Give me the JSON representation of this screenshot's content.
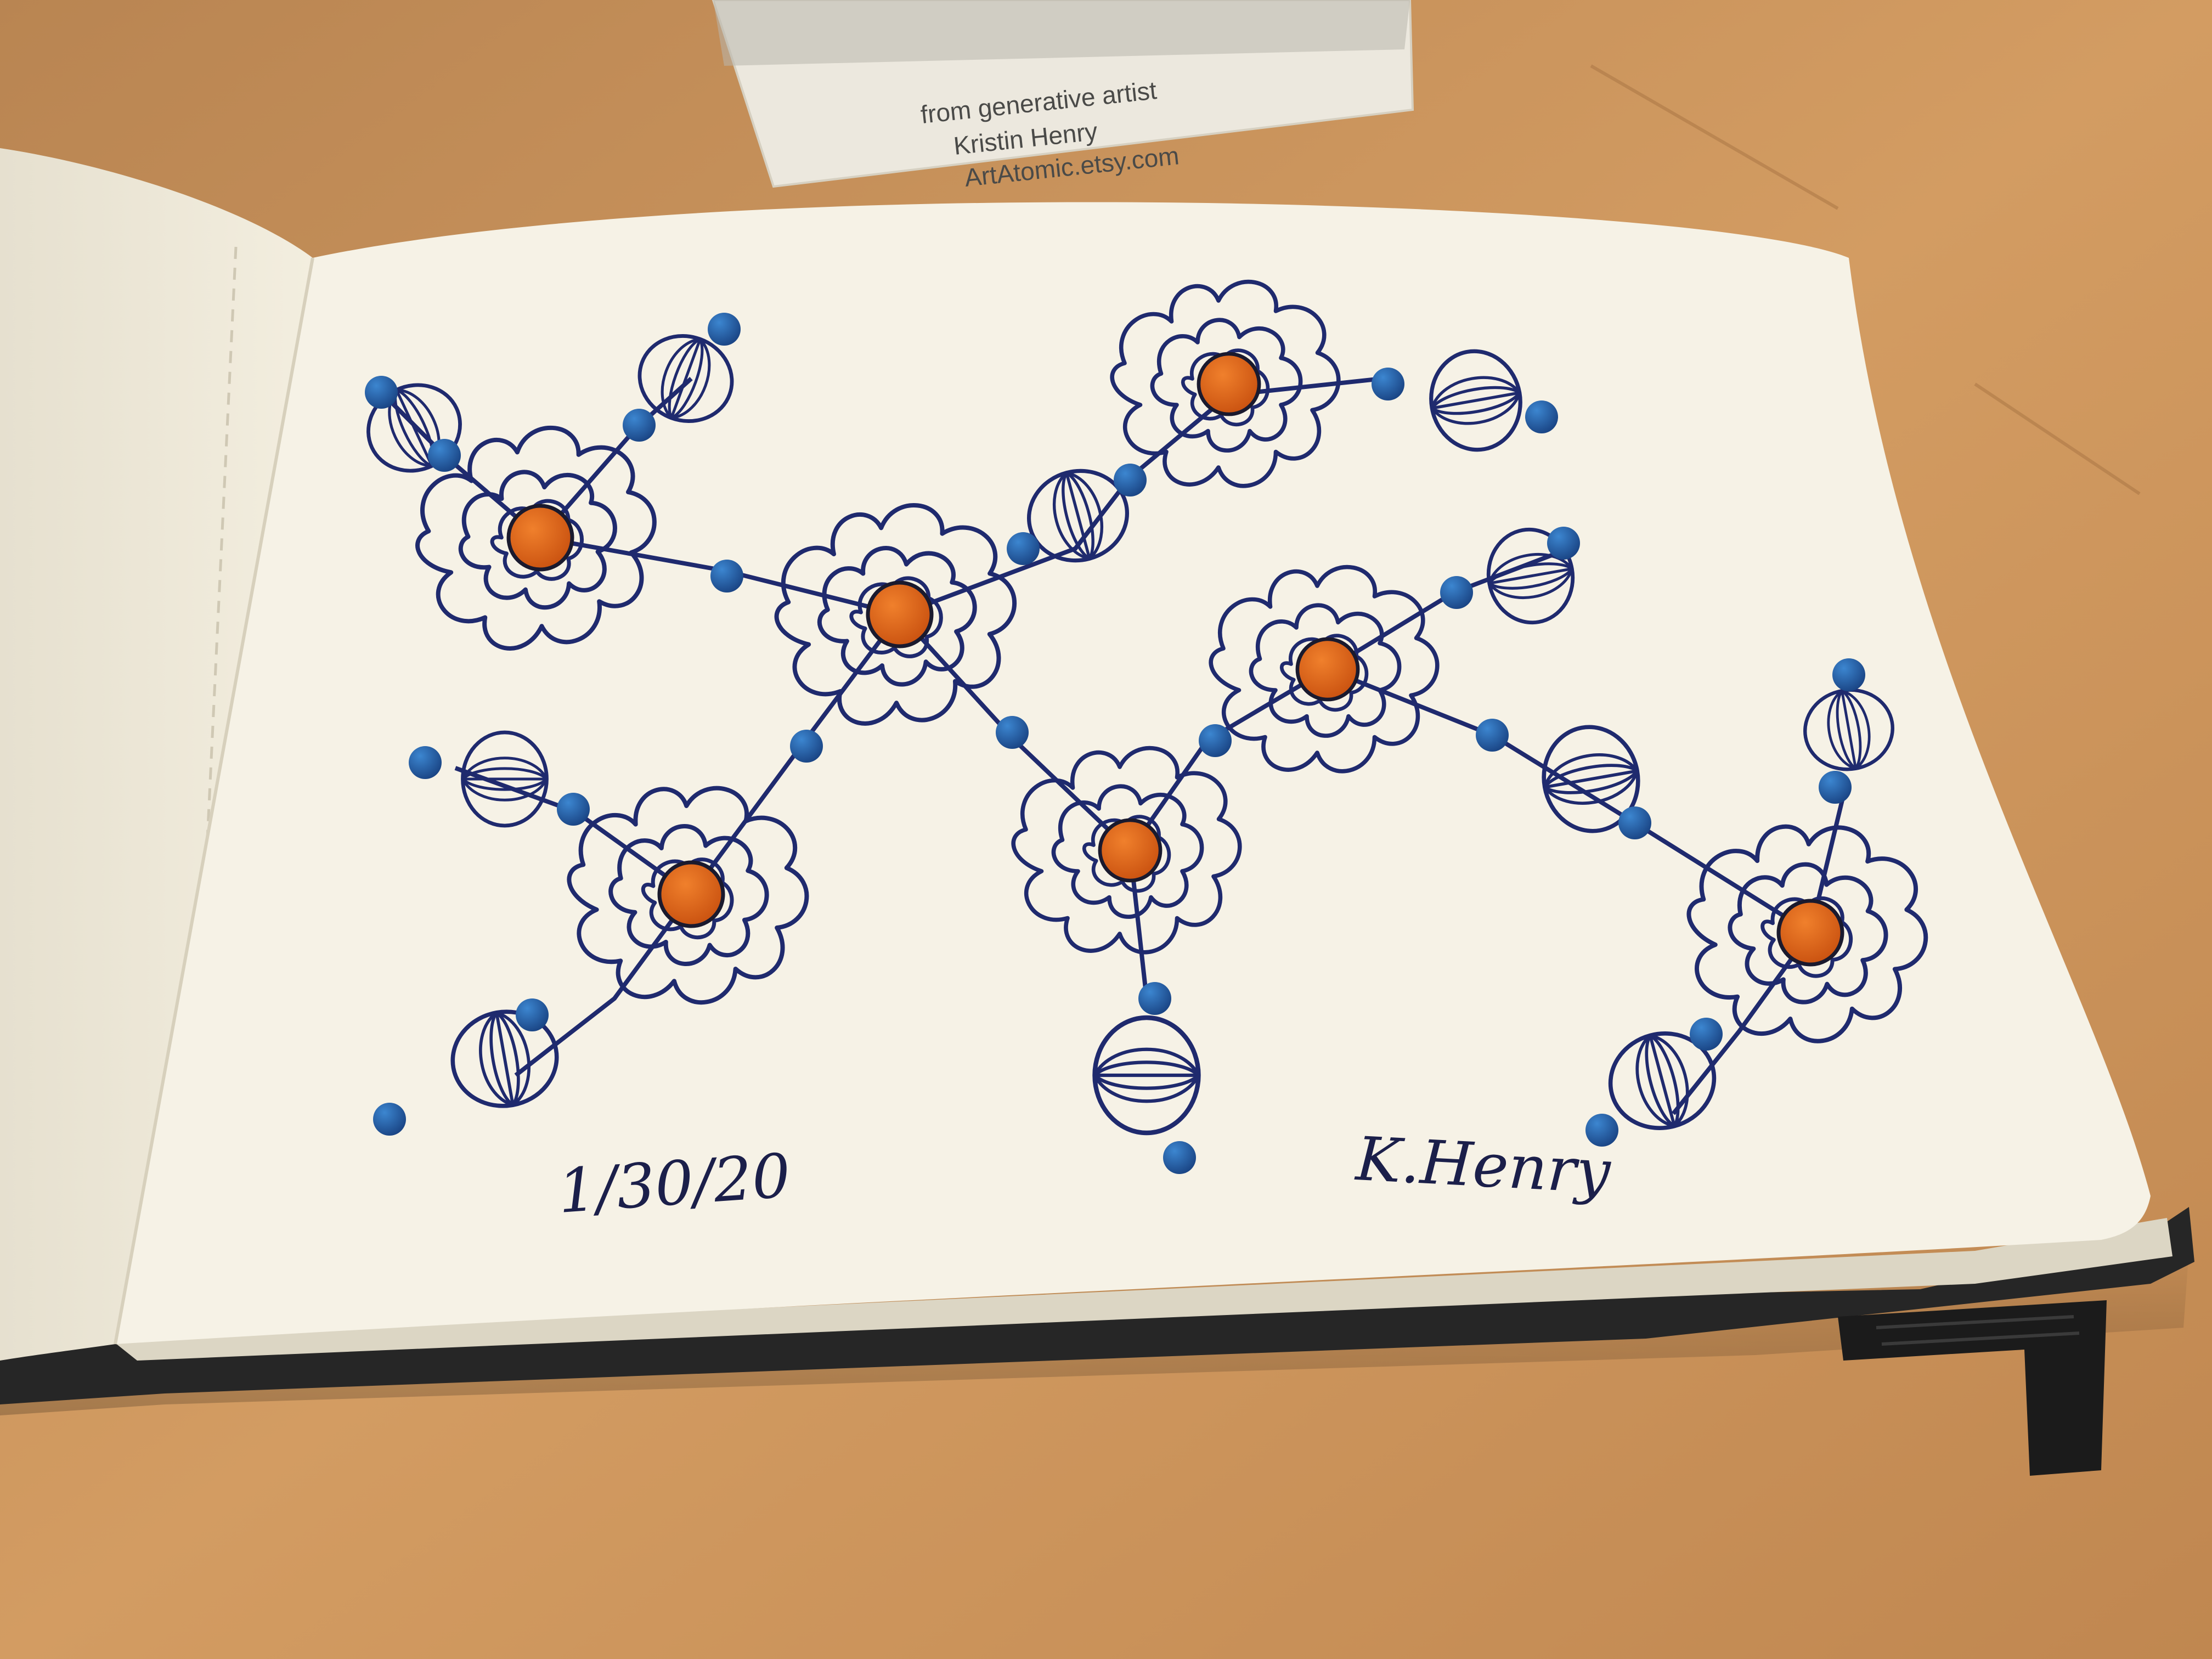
{
  "business_card": {
    "line1": "from generative artist",
    "line2": "Kristin Henry",
    "line3": "ArtAtomic.etsy.com"
  },
  "sketch": {
    "date": "1/30/20",
    "signature": "K.Henry"
  },
  "colors": {
    "table": "#c9945f",
    "paper": "#f6f2e6",
    "ink_blue": "#1f2a6e",
    "bright_blue": "#1e5fa8",
    "orange_center": "#e5621a",
    "notebook_cover": "#262626"
  }
}
